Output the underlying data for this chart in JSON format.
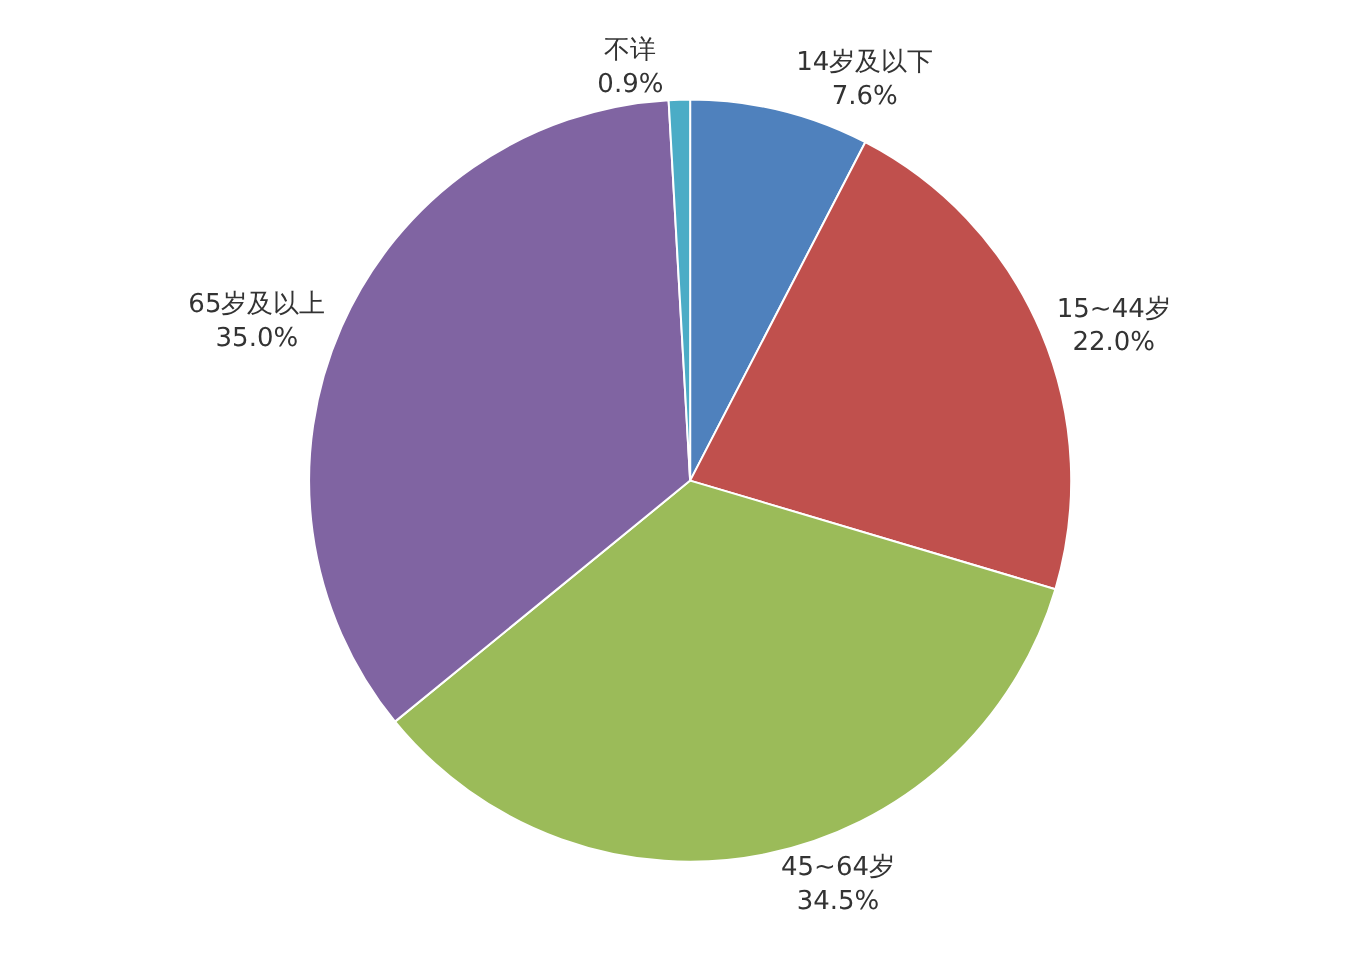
{
  "chart_data": {
    "type": "pie",
    "categories": [
      "14岁及以下",
      "15~44岁",
      "45~64岁",
      "65岁及以上",
      "不详"
    ],
    "values": [
      7.6,
      22.0,
      34.5,
      35.0,
      0.9
    ],
    "value_labels": [
      "7.6%",
      "22.0%",
      "34.5%",
      "35.0%",
      "0.9%"
    ],
    "colors": [
      "#4f81bd",
      "#c0504d",
      "#9bbb59",
      "#8064a2",
      "#4bacc6"
    ],
    "legend": false
  }
}
